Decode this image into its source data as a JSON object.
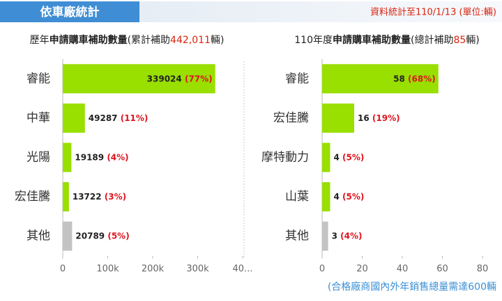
{
  "header": {
    "title": "依車廠統計",
    "note": "資料統計至110/1/13 (單位:輛)"
  },
  "footer": "(合格廠商國內外年銷售總量需達600輛",
  "chart_data": [
    {
      "type": "bar",
      "orientation": "horizontal",
      "title_parts": [
        "歷年",
        "申請購車補助數量",
        "(累計補助",
        "442,011",
        "輛)"
      ],
      "categories": [
        "睿能",
        "中華",
        "光陽",
        "宏佳騰",
        "其他"
      ],
      "values": [
        339024,
        49287,
        19189,
        13722,
        20789
      ],
      "value_labels": [
        "(77%)",
        "(11%)",
        "(4%)",
        "(3%)",
        "(5%)"
      ],
      "colors": [
        "#99df00",
        "#99df00",
        "#99df00",
        "#99df00",
        "#c3c3c3"
      ],
      "xlim": [
        0,
        400000
      ],
      "xticks": [
        0,
        {
          "value": 100000,
          "label": "100k"
        },
        {
          "value": 200000,
          "label": "200k"
        },
        {
          "value": 300000,
          "label": "300k"
        },
        {
          "value": 400000,
          "label": "40..."
        }
      ]
    },
    {
      "type": "bar",
      "orientation": "horizontal",
      "title_parts": [
        "110年度",
        "申請購車補助數量",
        "(總計補助",
        "85",
        "輛)"
      ],
      "categories": [
        "睿能",
        "宏佳騰",
        "摩特動力",
        "山葉",
        "其他"
      ],
      "values": [
        58,
        16,
        4,
        4,
        3
      ],
      "value_labels": [
        "(68%)",
        "(19%)",
        "(5%)",
        "(5%)",
        "(4%)"
      ],
      "colors": [
        "#99df00",
        "#99df00",
        "#99df00",
        "#99df00",
        "#c3c3c3"
      ],
      "xlim": [
        0,
        80
      ],
      "xticks": [
        0,
        20,
        40,
        60,
        80
      ]
    }
  ]
}
